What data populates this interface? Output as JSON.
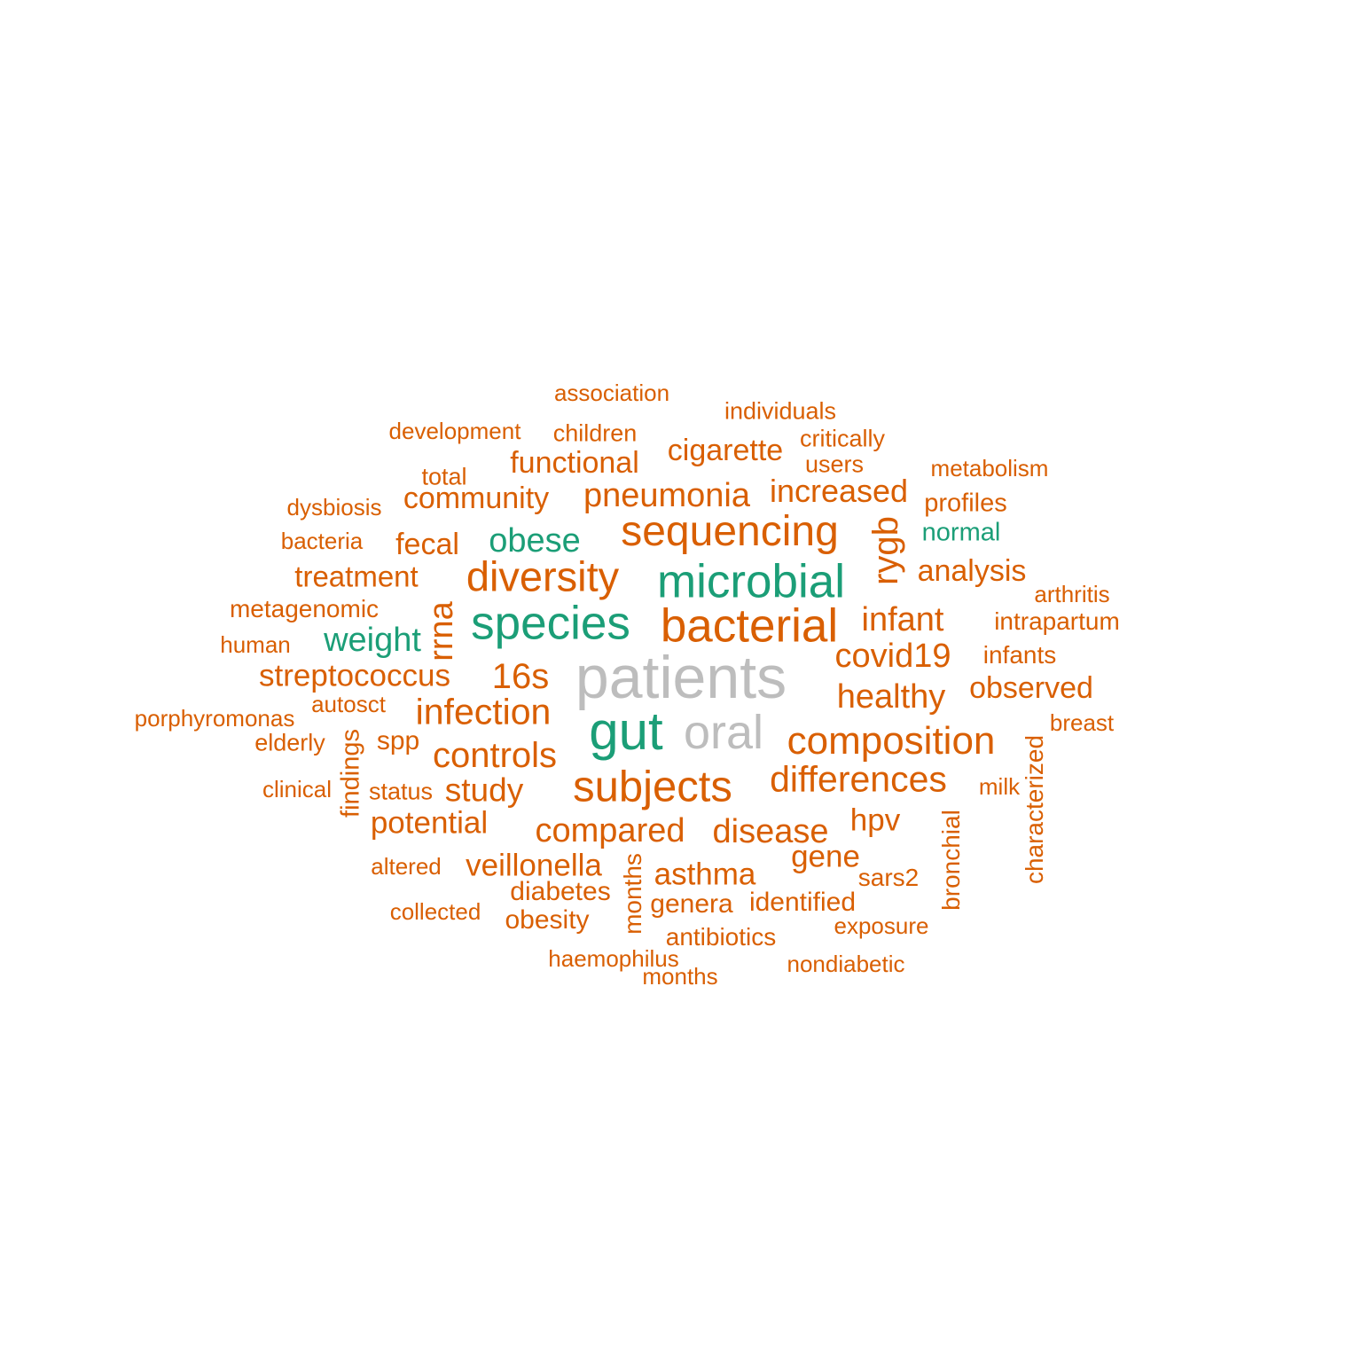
{
  "colors": {
    "orange": "#d95f02",
    "green": "#1b9e77",
    "grey": "#bdbdbd"
  },
  "words": {
    "patients": "patients",
    "gut": "gut",
    "oral": "oral",
    "bacterial": "bacterial",
    "microbial": "microbial",
    "species": "species",
    "subjects": "subjects",
    "sequencing": "sequencing",
    "diversity": "diversity",
    "composition": "composition",
    "differences": "differences",
    "infection": "infection",
    "controls": "controls",
    "s16": "16s",
    "obese": "obese",
    "weight": "weight",
    "infant": "infant",
    "covid19": "covid19",
    "healthy": "healthy",
    "pneumonia": "pneumonia",
    "increased": "increased",
    "rygb": "rygb",
    "rrna": "rrna",
    "compared": "compared",
    "disease": "disease",
    "study": "study",
    "streptococcus": "streptococcus",
    "community": "community",
    "functional": "functional",
    "cigarette": "cigarette",
    "fecal": "fecal",
    "analysis": "analysis",
    "treatment": "treatment",
    "potential": "potential",
    "veillonella": "veillonella",
    "asthma": "asthma",
    "gene": "gene",
    "hpv": "hpv",
    "observed": "observed",
    "normal": "normal",
    "association": "association",
    "individuals": "individuals",
    "development": "development",
    "children": "children",
    "critically": "critically",
    "users": "users",
    "metabolism": "metabolism",
    "total": "total",
    "dysbiosis": "dysbiosis",
    "profiles": "profiles",
    "bacteria": "bacteria",
    "arthritis": "arthritis",
    "metagenomic": "metagenomic",
    "intrapartum": "intrapartum",
    "human": "human",
    "infants": "infants",
    "porphyromonas": "porphyromonas",
    "autosct": "autosct",
    "breast": "breast",
    "elderly": "elderly",
    "spp": "spp",
    "findings": "findings",
    "characterized": "characterized",
    "clinical": "clinical",
    "status": "status",
    "milk": "milk",
    "bronchial": "bronchial",
    "altered": "altered",
    "months1": "months",
    "sars2": "sars2",
    "diabetes": "diabetes",
    "genera": "genera",
    "identified": "identified",
    "collected": "collected",
    "obesity": "obesity",
    "exposure": "exposure",
    "antibiotics": "antibiotics",
    "haemophilus": "haemophilus",
    "nondiabetic": "nondiabetic",
    "months2": "months"
  }
}
